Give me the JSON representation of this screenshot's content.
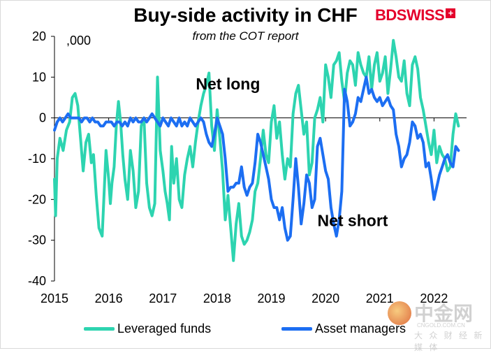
{
  "chart_data": {
    "type": "line",
    "title": "Buy-side activity in CHF",
    "subtitle": "from the COT report",
    "units_label": ",000",
    "ylim": [
      -40,
      20
    ],
    "yticks": [
      20,
      10,
      0,
      -10,
      -20,
      -30,
      -40
    ],
    "xlim": [
      2015.0,
      2022.6
    ],
    "xticks": [
      2015,
      2016,
      2017,
      2018,
      2019,
      2020,
      2021,
      2022
    ],
    "xtick_labels": [
      "2015",
      "2016",
      "2017",
      "2018",
      "2019",
      "2020",
      "2021",
      "2022"
    ],
    "annotations": [
      {
        "text": "Net long",
        "x": 2018.2,
        "y": 7
      },
      {
        "text": "Net short",
        "x": 2020.5,
        "y": -26.5
      }
    ],
    "series": [
      {
        "name": "Leveraged funds",
        "color": "#2dd4b0",
        "x": [
          2015.0,
          2015.02,
          2015.05,
          2015.1,
          2015.16,
          2015.22,
          2015.28,
          2015.33,
          2015.38,
          2015.43,
          2015.48,
          2015.53,
          2015.58,
          2015.63,
          2015.68,
          2015.72,
          2015.77,
          2015.82,
          2015.88,
          2015.95,
          2016.0,
          2016.03,
          2016.06,
          2016.1,
          2016.14,
          2016.18,
          2016.22,
          2016.26,
          2016.3,
          2016.35,
          2016.4,
          2016.45,
          2016.5,
          2016.55,
          2016.6,
          2016.65,
          2016.7,
          2016.75,
          2016.8,
          2016.85,
          2016.9,
          2016.95,
          2017.0,
          2017.04,
          2017.08,
          2017.12,
          2017.16,
          2017.2,
          2017.25,
          2017.3,
          2017.35,
          2017.4,
          2017.45,
          2017.5,
          2017.55,
          2017.6,
          2017.65,
          2017.7,
          2017.75,
          2017.8,
          2017.85,
          2017.9,
          2017.95,
          2018.0,
          2018.05,
          2018.1,
          2018.15,
          2018.2,
          2018.25,
          2018.3,
          2018.35,
          2018.4,
          2018.45,
          2018.5,
          2018.55,
          2018.6,
          2018.65,
          2018.7,
          2018.75,
          2018.8,
          2018.85,
          2018.9,
          2018.95,
          2019.0,
          2019.05,
          2019.1,
          2019.15,
          2019.2,
          2019.25,
          2019.3,
          2019.35,
          2019.4,
          2019.45,
          2019.5,
          2019.55,
          2019.6,
          2019.65,
          2019.7,
          2019.75,
          2019.8,
          2019.85,
          2019.9,
          2019.95,
          2020.0,
          2020.05,
          2020.1,
          2020.15,
          2020.2,
          2020.25,
          2020.3,
          2020.35,
          2020.4,
          2020.45,
          2020.5,
          2020.55,
          2020.6,
          2020.65,
          2020.7,
          2020.75,
          2020.8,
          2020.85,
          2020.9,
          2020.95,
          2021.0,
          2021.05,
          2021.1,
          2021.15,
          2021.2,
          2021.25,
          2021.3,
          2021.35,
          2021.4,
          2021.45,
          2021.5,
          2021.55,
          2021.6,
          2021.65,
          2021.7,
          2021.75,
          2021.8,
          2021.85,
          2021.9,
          2021.95,
          2022.0,
          2022.05,
          2022.1,
          2022.15,
          2022.2,
          2022.25,
          2022.3,
          2022.35,
          2022.4,
          2022.45
        ],
        "values": [
          -15,
          -24,
          -10,
          -5,
          -8,
          -3,
          -1,
          5,
          6,
          3,
          -5,
          -13,
          -6,
          -4,
          -11,
          -9,
          -19,
          -27,
          -29,
          -8,
          -15,
          -21,
          -16,
          -12,
          -2,
          4,
          -1,
          -9,
          -15,
          -20,
          -8,
          -13,
          -22,
          -18,
          -2,
          0,
          -16,
          -22,
          -24,
          -21,
          10,
          -8,
          -13,
          -18,
          -21,
          -25,
          -7,
          -16,
          -10,
          -20,
          -22,
          -14,
          -10,
          -7,
          -12,
          -6,
          -1,
          3,
          6,
          8,
          11,
          -2,
          -8,
          2,
          -5,
          -13,
          -25,
          -19,
          -27,
          -35,
          -26,
          -21,
          -29,
          -31,
          -30,
          -28,
          -25,
          -18,
          -16,
          -10,
          -3,
          -9,
          -11,
          -1,
          3,
          -5,
          -1,
          -9,
          -15,
          -10,
          -12,
          1,
          6,
          8,
          2,
          -4,
          -1,
          -14,
          -11,
          0,
          2,
          5,
          -1,
          13,
          10,
          5,
          13,
          14,
          16,
          9,
          4,
          11,
          14,
          13,
          8,
          16,
          13,
          11,
          10,
          15,
          7,
          13,
          16,
          9,
          11,
          15,
          6,
          12,
          19,
          15,
          10,
          9,
          14,
          6,
          3,
          13,
          15,
          12,
          5,
          2,
          -2,
          -6,
          -9,
          -3,
          -11,
          -7,
          -9,
          -10,
          -13,
          -12,
          -4,
          1,
          -2
        ]
      },
      {
        "name": "Asset managers",
        "color": "#1c6ef2",
        "x": [
          2015.0,
          2015.05,
          2015.1,
          2015.15,
          2015.2,
          2015.25,
          2015.3,
          2015.35,
          2015.4,
          2015.45,
          2015.5,
          2015.55,
          2015.6,
          2015.65,
          2015.7,
          2015.75,
          2015.8,
          2015.85,
          2015.9,
          2015.95,
          2016.0,
          2016.05,
          2016.1,
          2016.15,
          2016.2,
          2016.25,
          2016.3,
          2016.35,
          2016.4,
          2016.45,
          2016.5,
          2016.55,
          2016.6,
          2016.65,
          2016.7,
          2016.75,
          2016.8,
          2016.85,
          2016.9,
          2016.95,
          2017.0,
          2017.05,
          2017.1,
          2017.15,
          2017.2,
          2017.25,
          2017.3,
          2017.35,
          2017.4,
          2017.45,
          2017.5,
          2017.55,
          2017.6,
          2017.65,
          2017.7,
          2017.75,
          2017.8,
          2017.85,
          2017.9,
          2017.95,
          2018.0,
          2018.05,
          2018.1,
          2018.15,
          2018.2,
          2018.25,
          2018.3,
          2018.35,
          2018.4,
          2018.45,
          2018.5,
          2018.55,
          2018.6,
          2018.65,
          2018.7,
          2018.75,
          2018.8,
          2018.85,
          2018.9,
          2018.95,
          2019.0,
          2019.05,
          2019.1,
          2019.15,
          2019.2,
          2019.25,
          2019.3,
          2019.35,
          2019.4,
          2019.45,
          2019.5,
          2019.55,
          2019.6,
          2019.65,
          2019.7,
          2019.75,
          2019.8,
          2019.85,
          2019.9,
          2019.95,
          2020.0,
          2020.05,
          2020.1,
          2020.15,
          2020.2,
          2020.25,
          2020.3,
          2020.35,
          2020.4,
          2020.45,
          2020.5,
          2020.55,
          2020.6,
          2020.65,
          2020.7,
          2020.75,
          2020.8,
          2020.85,
          2020.9,
          2020.95,
          2021.0,
          2021.05,
          2021.1,
          2021.15,
          2021.2,
          2021.25,
          2021.3,
          2021.35,
          2021.4,
          2021.45,
          2021.5,
          2021.55,
          2021.6,
          2021.65,
          2021.7,
          2021.75,
          2021.8,
          2021.85,
          2021.9,
          2021.95,
          2022.0,
          2022.05,
          2022.1,
          2022.15,
          2022.2,
          2022.25,
          2022.3,
          2022.35,
          2022.4,
          2022.45
        ],
        "values": [
          -3,
          -1,
          0,
          -1,
          0,
          1,
          0,
          0,
          0,
          0,
          -1,
          0,
          0,
          -1,
          0,
          -1,
          -1,
          -2,
          -2,
          -1,
          -1,
          -1,
          -2,
          -1,
          -1,
          -2,
          -1,
          -2,
          0,
          -1,
          0,
          -1,
          -1,
          0,
          -1,
          0,
          1,
          0,
          -1,
          -2,
          0,
          -1,
          -2,
          0,
          -1,
          -2,
          0,
          -2,
          -1,
          -2,
          0,
          -1,
          -2,
          -1,
          0,
          -1,
          -4,
          -6,
          -7,
          -4,
          0,
          -2,
          -4,
          -10,
          -18,
          -17,
          -17,
          -16,
          -16,
          -12,
          -17,
          -19,
          -17,
          -16,
          -11,
          -4,
          -6,
          -9,
          -12,
          -15,
          -20,
          -22,
          -22,
          -25,
          -22,
          -27,
          -30,
          -29,
          -20,
          -10,
          -17,
          -26,
          -21,
          -14,
          -16,
          -22,
          -20,
          -7,
          -5,
          -9,
          -13,
          -15,
          -22,
          -26,
          -29,
          -25,
          -18,
          7,
          4,
          -2,
          -1,
          1,
          5,
          4,
          7,
          10,
          6,
          7,
          5,
          4,
          5,
          3,
          4,
          5,
          3,
          2,
          -4,
          -7,
          -12,
          -10,
          -9,
          -6,
          -1,
          -2,
          -5,
          -4,
          -6,
          -12,
          -11,
          -15,
          -20,
          -17,
          -14,
          -12,
          -10,
          -9,
          -11,
          -12,
          -7,
          -8
        ]
      }
    ]
  },
  "legend": {
    "leveraged_label": "Leveraged funds",
    "asset_label": "Asset managers"
  },
  "brand": {
    "logo_text": "BDSWISS",
    "watermark_name": "中金网",
    "watermark_site": "CNGOLD.COM.CN",
    "watermark_tagline": "大 众 财 经 新 媒 体"
  }
}
